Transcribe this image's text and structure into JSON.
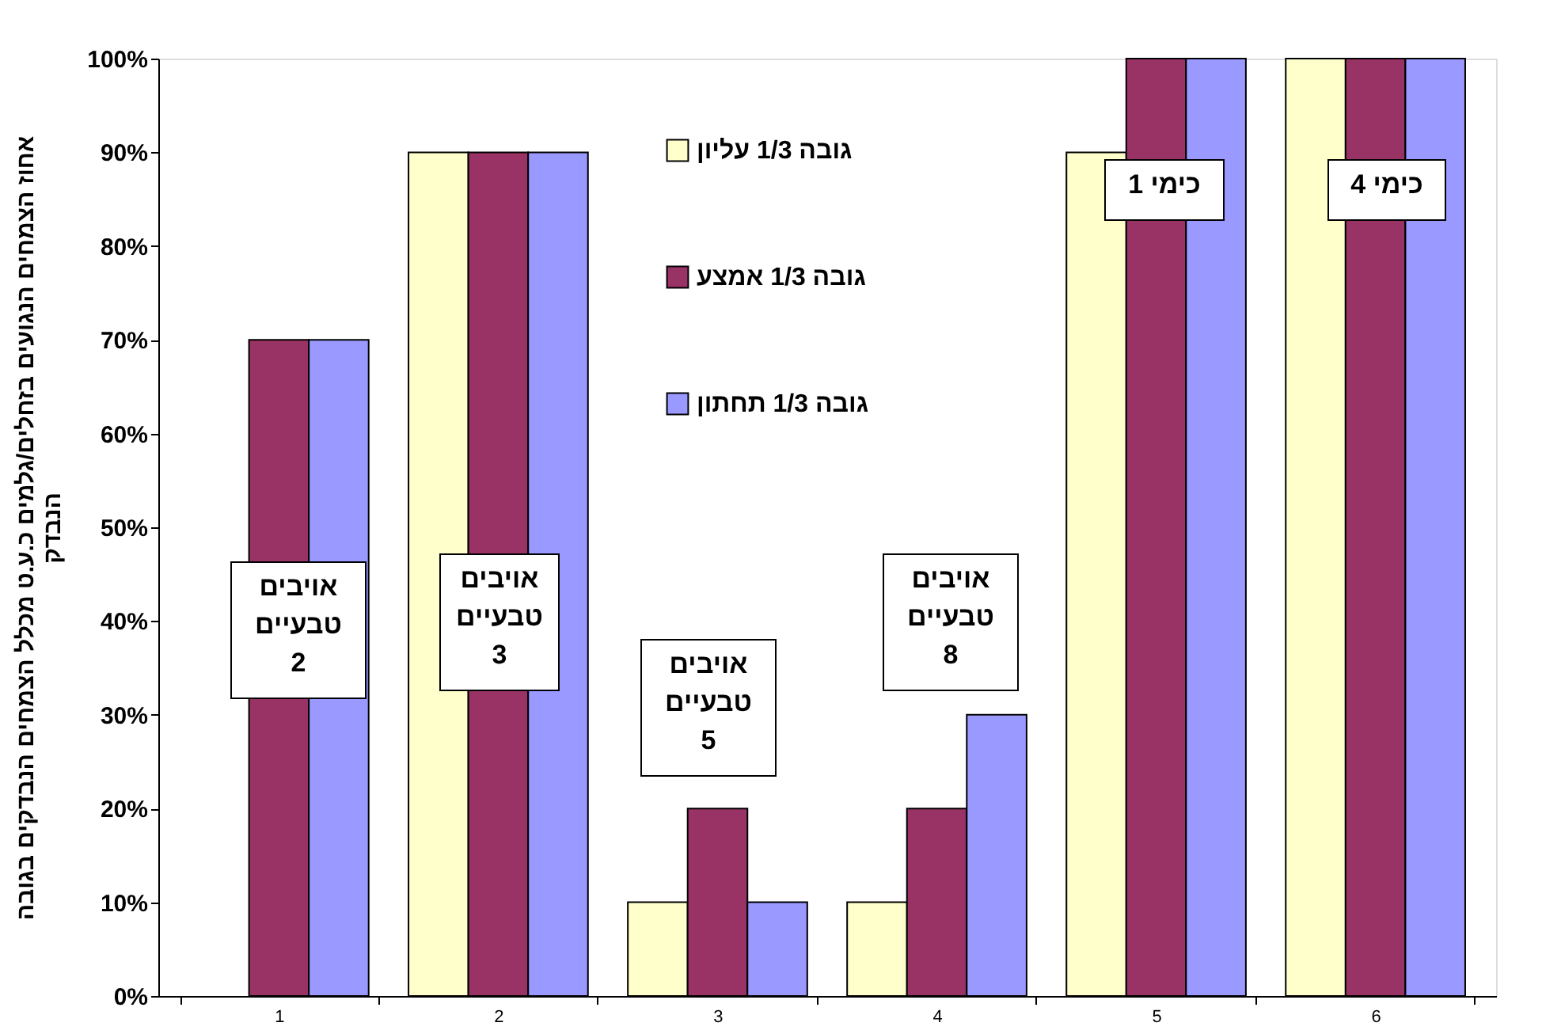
{
  "chart_data": {
    "type": "bar",
    "ylabel": "אחוז הצמחים הנגועים בזחלים/גלמים כ.ע.ט מכלל הצמחים הנבדקים בגובה\nהנבדק",
    "categories": [
      "1",
      "2",
      "3",
      "4",
      "5",
      "6"
    ],
    "series": [
      {
        "name": "גובה 1/3 עליון",
        "color": "#ffffcc",
        "values": [
          0,
          90,
          10,
          10,
          90,
          100
        ]
      },
      {
        "name": "גובה 1/3 אמצע",
        "color": "#993366",
        "values": [
          70,
          90,
          20,
          20,
          100,
          100
        ]
      },
      {
        "name": "גובה 1/3 תחתון",
        "color": "#9999ff",
        "values": [
          70,
          90,
          10,
          30,
          100,
          100
        ]
      }
    ],
    "ylim": [
      0,
      100
    ],
    "yticks": [
      {
        "value": 0,
        "label": "0%"
      },
      {
        "value": 10,
        "label": "10%"
      },
      {
        "value": 20,
        "label": "20%"
      },
      {
        "value": 30,
        "label": "30%"
      },
      {
        "value": 40,
        "label": "40%"
      },
      {
        "value": 50,
        "label": "50%"
      },
      {
        "value": 60,
        "label": "60%"
      },
      {
        "value": 70,
        "label": "70%"
      },
      {
        "value": 80,
        "label": "80%"
      },
      {
        "value": 90,
        "label": "90%"
      },
      {
        "value": 100,
        "label": "100%"
      }
    ],
    "grid": false,
    "legend": "top",
    "annotations": [
      "אויבים\nטבעיים\n2",
      "אויבים\nטבעיים\n3",
      "אויבים\nטבעיים\n5",
      "אויבים\nטבעיים\n8",
      "כימי 1",
      "כימי 4"
    ]
  }
}
